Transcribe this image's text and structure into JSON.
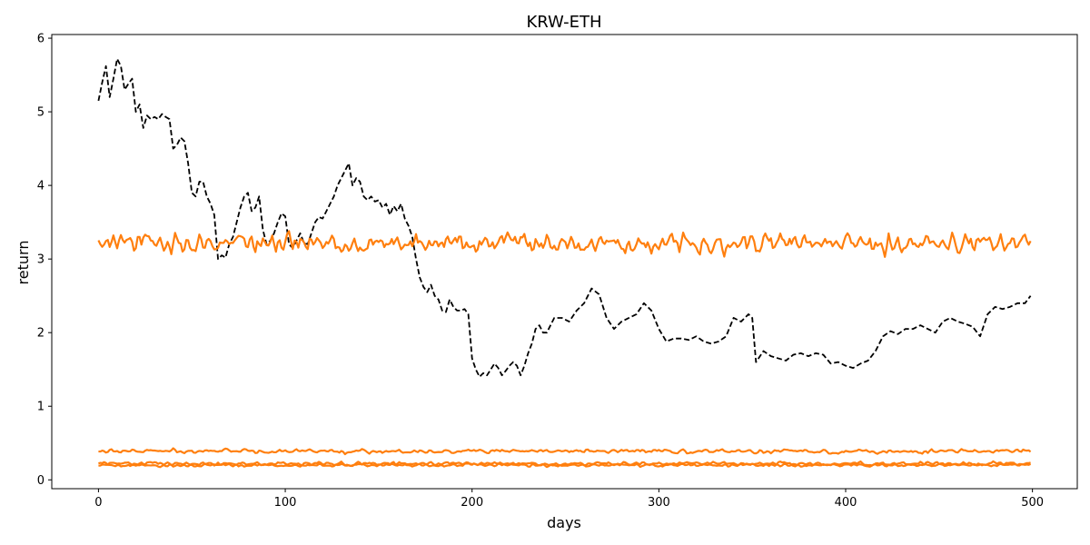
{
  "chart_data": {
    "type": "line",
    "title": "KRW-ETH",
    "xlabel": "days",
    "ylabel": "return",
    "xlim": [
      -25,
      524
    ],
    "ylim": [
      -0.12,
      6.05
    ],
    "x_ticks": [
      0,
      100,
      200,
      300,
      400,
      500
    ],
    "y_ticks": [
      0,
      1,
      2,
      3,
      4,
      5,
      6
    ],
    "grid": false,
    "colors": {
      "price": "#000000",
      "orange": "#ff7f0e"
    },
    "series": [
      {
        "style": "dashed",
        "color": "#000000",
        "x": [
          0,
          2,
          4,
          6,
          8,
          10,
          12,
          14,
          16,
          18,
          20,
          22,
          24,
          26,
          28,
          30,
          32,
          34,
          36,
          38,
          40,
          42,
          44,
          46,
          48,
          50,
          52,
          54,
          56,
          58,
          60,
          62,
          64,
          66,
          68,
          70,
          72,
          74,
          76,
          78,
          80,
          82,
          84,
          86,
          88,
          90,
          92,
          94,
          96,
          98,
          100,
          102,
          104,
          106,
          108,
          110,
          112,
          114,
          116,
          118,
          120,
          122,
          124,
          126,
          128,
          130,
          132,
          134,
          136,
          138,
          140,
          142,
          144,
          146,
          148,
          150,
          152,
          154,
          156,
          158,
          160,
          162,
          164,
          166,
          168,
          170,
          172,
          174,
          176,
          178,
          180,
          182,
          184,
          186,
          188,
          190,
          192,
          194,
          196,
          198,
          200,
          202,
          204,
          206,
          208,
          210,
          212,
          214,
          216,
          218,
          220,
          222,
          224,
          226,
          228,
          230,
          232,
          234,
          236,
          238,
          240,
          244,
          248,
          252,
          256,
          260,
          264,
          268,
          272,
          276,
          280,
          284,
          288,
          292,
          296,
          300,
          304,
          308,
          312,
          316,
          320,
          324,
          328,
          332,
          336,
          340,
          344,
          348,
          350,
          352,
          356,
          360,
          364,
          368,
          372,
          376,
          380,
          384,
          388,
          392,
          396,
          400,
          404,
          408,
          412,
          416,
          420,
          424,
          428,
          432,
          436,
          440,
          444,
          448,
          452,
          456,
          460,
          464,
          468,
          472,
          476,
          480,
          484,
          488,
          492,
          496,
          499
        ],
        "y": [
          5.15,
          5.4,
          5.62,
          5.2,
          5.45,
          5.72,
          5.62,
          5.3,
          5.38,
          5.45,
          5.0,
          5.1,
          4.78,
          4.95,
          4.9,
          4.93,
          4.9,
          4.97,
          4.93,
          4.9,
          4.5,
          4.55,
          4.65,
          4.6,
          4.3,
          3.9,
          3.85,
          4.05,
          4.05,
          3.85,
          3.75,
          3.6,
          3.0,
          3.05,
          3.02,
          3.2,
          3.3,
          3.5,
          3.7,
          3.85,
          3.9,
          3.65,
          3.7,
          3.85,
          3.4,
          3.2,
          3.25,
          3.35,
          3.5,
          3.62,
          3.58,
          3.2,
          3.15,
          3.25,
          3.35,
          3.22,
          3.2,
          3.35,
          3.5,
          3.57,
          3.55,
          3.65,
          3.75,
          3.85,
          4.0,
          4.1,
          4.2,
          4.3,
          4.0,
          4.1,
          4.05,
          3.85,
          3.8,
          3.85,
          3.78,
          3.8,
          3.7,
          3.75,
          3.6,
          3.72,
          3.65,
          3.75,
          3.55,
          3.45,
          3.3,
          3.0,
          2.75,
          2.62,
          2.55,
          2.65,
          2.5,
          2.45,
          2.3,
          2.28,
          2.45,
          2.35,
          2.3,
          2.3,
          2.32,
          2.25,
          1.65,
          1.5,
          1.4,
          1.45,
          1.42,
          1.5,
          1.58,
          1.52,
          1.42,
          1.48,
          1.55,
          1.6,
          1.55,
          1.42,
          1.55,
          1.72,
          1.85,
          2.05,
          2.1,
          2.0,
          2.0,
          2.2,
          2.2,
          2.15,
          2.3,
          2.4,
          2.6,
          2.52,
          2.2,
          2.05,
          2.15,
          2.2,
          2.25,
          2.4,
          2.3,
          2.05,
          1.88,
          1.92,
          1.92,
          1.9,
          1.95,
          1.88,
          1.85,
          1.88,
          1.95,
          2.2,
          2.15,
          2.25,
          2.2,
          1.6,
          1.75,
          1.68,
          1.65,
          1.62,
          1.7,
          1.72,
          1.68,
          1.72,
          1.7,
          1.58,
          1.6,
          1.55,
          1.52,
          1.58,
          1.62,
          1.75,
          1.95,
          2.02,
          1.98,
          2.05,
          2.05,
          2.1,
          2.05,
          2.0,
          2.15,
          2.2,
          2.15,
          2.12,
          2.08,
          1.95,
          2.25,
          2.35,
          2.32,
          2.35,
          2.4,
          2.4,
          2.5
        ]
      },
      {
        "style": "solid",
        "color": "#ff7f0e",
        "mean": 3.22,
        "noise": 0.09,
        "x_start": 0,
        "x_end": 499,
        "visible_values_note": ""
      },
      {
        "style": "solid",
        "color": "#ff7f0e",
        "mean": 0.39,
        "noise": 0.018,
        "x_start": 0,
        "x_end": 499
      },
      {
        "style": "solid",
        "color": "#ff7f0e",
        "mean": 0.22,
        "noise": 0.017,
        "x_start": 0,
        "x_end": 499
      },
      {
        "style": "solid",
        "color": "#ff7f0e",
        "mean": 0.2,
        "noise": 0.014,
        "x_start": 0,
        "x_end": 499
      }
    ]
  }
}
